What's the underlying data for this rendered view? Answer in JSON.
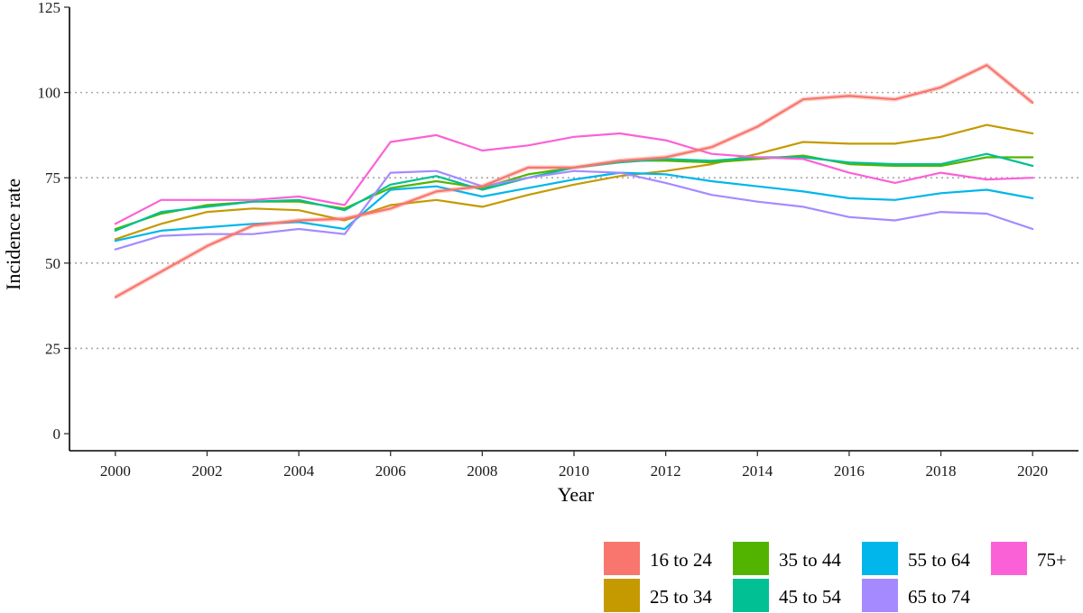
{
  "chart_data": {
    "type": "line",
    "title": "",
    "xlabel": "Year",
    "ylabel": "Incidence rate",
    "xlim": [
      1999,
      2021
    ],
    "ylim": [
      -5,
      125
    ],
    "x_ticks": [
      2000,
      2002,
      2004,
      2006,
      2008,
      2010,
      2012,
      2014,
      2016,
      2018,
      2020
    ],
    "y_ticks": [
      0,
      25,
      50,
      75,
      100,
      125
    ],
    "grid": "horizontal dotted at y ticks",
    "legend_position": "bottom-right",
    "x": [
      2000,
      2001,
      2002,
      2003,
      2004,
      2005,
      2006,
      2007,
      2008,
      2009,
      2010,
      2011,
      2012,
      2013,
      2014,
      2015,
      2016,
      2017,
      2018,
      2019,
      2020
    ],
    "series": [
      {
        "name": "16 to 24",
        "color": "#F8766D",
        "values": [
          40,
          47.5,
          55,
          61,
          62.5,
          63,
          66,
          71,
          72.5,
          78,
          78,
          80,
          81,
          84,
          90,
          98,
          99,
          98,
          101.5,
          108,
          97
        ]
      },
      {
        "name": "25 to 34",
        "color": "#C49A00",
        "values": [
          57,
          61.5,
          65,
          66,
          65.5,
          62.5,
          67,
          68.5,
          66.5,
          70,
          73,
          75.5,
          77,
          79,
          82,
          85.5,
          85,
          85,
          87,
          90.5,
          88
        ]
      },
      {
        "name": "35 to 44",
        "color": "#53B400",
        "values": [
          60,
          64.5,
          67,
          68,
          68,
          66,
          72,
          74,
          72,
          76,
          78,
          80,
          80,
          79.5,
          80.5,
          81.5,
          79,
          78.5,
          78.5,
          81,
          81
        ]
      },
      {
        "name": "45 to 54",
        "color": "#00C094",
        "values": [
          59.5,
          65,
          66.5,
          68,
          68.5,
          65.5,
          73,
          75.5,
          71.5,
          75,
          78,
          79.5,
          80.5,
          80,
          81,
          81,
          79.5,
          79,
          79,
          82,
          78.5
        ]
      },
      {
        "name": "55 to 64",
        "color": "#00B6EB",
        "values": [
          56.5,
          59.5,
          60.5,
          61.5,
          62,
          60,
          71.5,
          72.5,
          69.5,
          72,
          74.5,
          76.5,
          76,
          74,
          72.5,
          71,
          69,
          68.5,
          70.5,
          71.5,
          69
        ]
      },
      {
        "name": "65 to 74",
        "color": "#A58AFF",
        "values": [
          54,
          58,
          58.5,
          58.5,
          60,
          58.5,
          76.5,
          77,
          72.5,
          75,
          77,
          76.5,
          73.5,
          70,
          68,
          66.5,
          63.5,
          62.5,
          65,
          64.5,
          60
        ]
      },
      {
        "name": "75+",
        "color": "#FB61D7",
        "values": [
          61.5,
          68.5,
          68.5,
          68.5,
          69.5,
          67,
          85.5,
          87.5,
          83,
          84.5,
          87,
          88,
          86,
          82,
          81,
          80.5,
          76.5,
          73.5,
          76.5,
          74.5,
          75
        ]
      }
    ]
  }
}
